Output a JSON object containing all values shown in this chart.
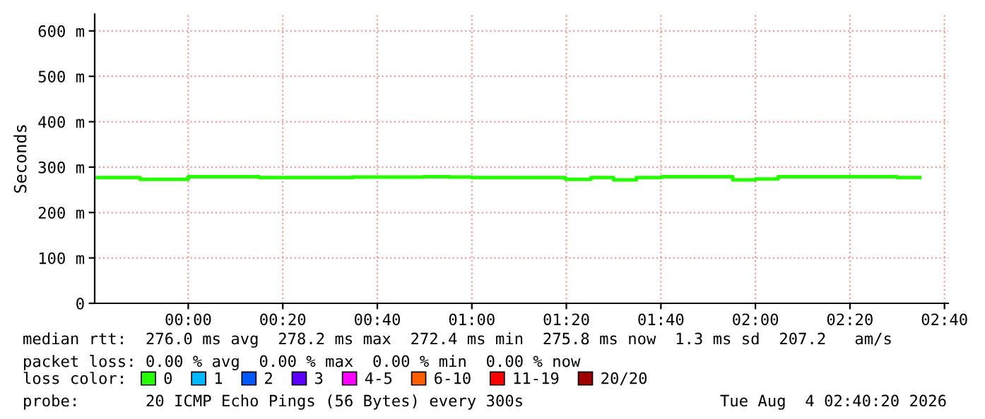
{
  "chart_data": {
    "type": "step",
    "ylabel": "Seconds",
    "x": [
      -0.33,
      -0.17,
      0,
      0.25,
      0.58,
      0.83,
      0.92,
      1.0,
      1.33,
      1.42,
      1.5,
      1.58,
      1.67,
      1.92,
      2.0,
      2.08,
      2.5,
      2.58
    ],
    "series": [
      {
        "name": "0",
        "color": "#26ff00",
        "values": [
          277,
          273,
          279,
          277,
          278,
          279,
          278,
          277,
          273,
          277,
          272,
          277,
          279,
          272,
          274,
          279,
          277,
          277
        ]
      },
      {
        "name": "1",
        "color": "#00b8ff",
        "values": [
          null,
          null,
          null,
          null,
          null,
          null,
          null,
          null,
          null,
          null,
          null,
          null,
          null,
          null,
          null,
          null,
          null,
          null
        ]
      },
      {
        "name": "2",
        "color": "#0059ff",
        "values": [
          null,
          null,
          null,
          null,
          null,
          null,
          null,
          null,
          null,
          null,
          null,
          null,
          null,
          null,
          null,
          null,
          null,
          null
        ]
      },
      {
        "name": "3",
        "color": "#5e00ff",
        "values": [
          null,
          null,
          null,
          null,
          null,
          null,
          null,
          null,
          null,
          null,
          null,
          null,
          null,
          null,
          null,
          null,
          null,
          null
        ]
      },
      {
        "name": "4-5",
        "color": "#ff00fe",
        "values": [
          null,
          null,
          null,
          null,
          null,
          null,
          null,
          null,
          null,
          null,
          null,
          null,
          null,
          null,
          null,
          null,
          null,
          null
        ]
      },
      {
        "name": "6-10",
        "color": "#ff5e00",
        "values": [
          null,
          null,
          null,
          null,
          null,
          null,
          null,
          null,
          null,
          null,
          null,
          null,
          null,
          null,
          null,
          null,
          null,
          null
        ]
      },
      {
        "name": "11-19",
        "color": "#ff0000",
        "values": [
          null,
          null,
          null,
          null,
          null,
          null,
          null,
          null,
          null,
          null,
          null,
          null,
          null,
          null,
          null,
          null,
          null,
          null
        ]
      },
      {
        "name": "20/20",
        "color": "#a10000",
        "values": [
          null,
          null,
          null,
          null,
          null,
          null,
          null,
          null,
          null,
          null,
          null,
          null,
          null,
          null,
          null,
          null,
          null,
          null
        ]
      }
    ],
    "legend_title": "loss color:",
    "legend": "bottom",
    "grid": true,
    "xlim": [
      -0.33,
      2.68
    ],
    "xticks": [
      {
        "value": 0,
        "label": "00:00"
      },
      {
        "value": 0.3333,
        "label": "00:20"
      },
      {
        "value": 0.6667,
        "label": "00:40"
      },
      {
        "value": 1,
        "label": "01:00"
      },
      {
        "value": 1.3333,
        "label": "01:20"
      },
      {
        "value": 1.6667,
        "label": "01:40"
      },
      {
        "value": 2,
        "label": "02:00"
      },
      {
        "value": 2.3333,
        "label": "02:20"
      },
      {
        "value": 2.6667,
        "label": "02:40"
      }
    ],
    "ylim": [
      0,
      637
    ],
    "yticks": [
      0,
      {
        "value": 100,
        "label": "100 m"
      },
      {
        "value": 200,
        "label": "200 m"
      },
      {
        "value": 300,
        "label": "300 m"
      },
      {
        "value": 400,
        "label": "400 m"
      },
      {
        "value": 500,
        "label": "500 m"
      },
      {
        "value": 600,
        "label": "600 m"
      }
    ],
    "annotations": [
      "median rtt:  276.0 ms avg  278.2 ms max  272.4 ms min  275.8 ms now  1.3 ms sd  207.2   am/s",
      "packet loss: 0.00 % avg  0.00 % max  0.00 % min  0.00 % now",
      "probe:       20 ICMP Echo Pings (56 Bytes) every 300s",
      "Tue Aug  4 02:40:20 2026"
    ]
  }
}
